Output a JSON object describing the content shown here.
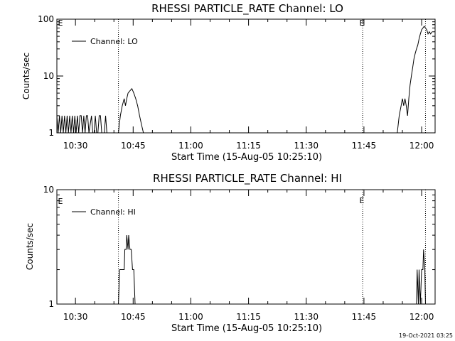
{
  "footer": {
    "timestamp": "19-Oct-2021 03:25"
  },
  "chart_data": [
    {
      "type": "line",
      "title": "RHESSI PARTICLE_RATE Channel: LO",
      "xlabel": "Start Time (15-Aug-05 10:25:10)",
      "ylabel": "Counts/sec",
      "yscale": "log",
      "xlim": [
        "10:25:10",
        "12:03:30"
      ],
      "ylim": [
        1,
        100
      ],
      "x_ticks": [
        "10:30",
        "10:45",
        "11:00",
        "11:15",
        "11:30",
        "11:45",
        "12:00"
      ],
      "y_ticks": [
        "1",
        "10",
        "100"
      ],
      "legend": {
        "position": "top-left",
        "entries": [
          "Channel: LO"
        ]
      },
      "markers": [
        {
          "time": "10:41:10",
          "label": "E"
        },
        {
          "time": "11:44:40",
          "label": "E"
        },
        {
          "time": "12:01:00",
          "label": ""
        }
      ],
      "marker_labels": [
        {
          "text": "E",
          "at": "left-edge"
        },
        {
          "text": "E",
          "at": "11:44:40"
        }
      ],
      "series": [
        {
          "points": [
            [
              "10:25:10",
              2
            ],
            [
              "10:25:30",
              1
            ],
            [
              "10:25:50",
              2
            ],
            [
              "10:26:10",
              1
            ],
            [
              "10:26:30",
              2
            ],
            [
              "10:26:50",
              1
            ],
            [
              "10:27:10",
              2
            ],
            [
              "10:27:30",
              1
            ],
            [
              "10:27:50",
              2
            ],
            [
              "10:28:10",
              1
            ],
            [
              "10:28:30",
              2
            ],
            [
              "10:28:50",
              1
            ],
            [
              "10:29:10",
              2
            ],
            [
              "10:29:30",
              1
            ],
            [
              "10:29:50",
              2
            ],
            [
              "10:30:10",
              1
            ],
            [
              "10:30:30",
              2
            ],
            [
              "10:30:50",
              1
            ],
            [
              "10:31:10",
              2
            ],
            [
              "10:31:30",
              2
            ],
            [
              "10:31:50",
              1
            ],
            [
              "10:32:10",
              2
            ],
            [
              "10:32:30",
              1
            ],
            [
              "10:32:50",
              2
            ],
            [
              "10:33:10",
              2
            ],
            [
              "10:33:30",
              1
            ],
            [
              "10:34:10",
              2
            ],
            [
              "10:34:30",
              1
            ],
            [
              "10:34:50",
              1
            ],
            [
              "10:35:10",
              2
            ],
            [
              "10:35:30",
              1
            ],
            [
              "10:35:50",
              1
            ],
            [
              "10:36:10",
              2
            ],
            [
              "10:36:30",
              2
            ],
            [
              "10:36:50",
              1
            ],
            [
              "10:37:30",
              1
            ],
            [
              "10:37:50",
              2
            ],
            [
              "10:38:10",
              1
            ],
            [
              "10:41:10",
              1
            ],
            [
              "10:41:40",
              2
            ],
            [
              "10:42:10",
              3
            ],
            [
              "10:42:40",
              4
            ],
            [
              "10:43:00",
              3
            ],
            [
              "10:43:20",
              4
            ],
            [
              "10:43:40",
              5
            ],
            [
              "10:44:10",
              5.5
            ],
            [
              "10:44:40",
              6
            ],
            [
              "10:45:10",
              5
            ],
            [
              "10:45:40",
              4
            ],
            [
              "10:46:10",
              3
            ],
            [
              "10:46:40",
              2
            ],
            [
              "10:47:10",
              1.4
            ],
            [
              "10:47:40",
              1
            ],
            [
              "11:53:40",
              1
            ],
            [
              "11:54:10",
              2
            ],
            [
              "11:54:40",
              3
            ],
            [
              "11:55:00",
              4
            ],
            [
              "11:55:20",
              3
            ],
            [
              "11:55:40",
              4
            ],
            [
              "11:56:00",
              3
            ],
            [
              "11:56:20",
              2
            ],
            [
              "11:56:40",
              4
            ],
            [
              "11:57:00",
              7
            ],
            [
              "11:57:20",
              10
            ],
            [
              "11:57:40",
              14
            ],
            [
              "11:58:00",
              20
            ],
            [
              "11:58:20",
              25
            ],
            [
              "11:58:40",
              30
            ],
            [
              "11:59:00",
              35
            ],
            [
              "11:59:20",
              45
            ],
            [
              "11:59:40",
              55
            ],
            [
              "12:00:00",
              65
            ],
            [
              "12:00:20",
              70
            ],
            [
              "12:00:40",
              75
            ],
            [
              "12:01:00",
              70
            ],
            [
              "12:01:20",
              65
            ],
            [
              "12:01:40",
              55
            ],
            [
              "12:02:00",
              60
            ],
            [
              "12:02:20",
              55
            ],
            [
              "12:02:40",
              60
            ]
          ]
        }
      ]
    },
    {
      "type": "line",
      "title": "RHESSI PARTICLE_RATE Channel: HI",
      "xlabel": "Start Time (15-Aug-05 10:25:10)",
      "ylabel": "Counts/sec",
      "yscale": "log",
      "xlim": [
        "10:25:10",
        "12:03:30"
      ],
      "ylim": [
        1,
        10
      ],
      "x_ticks": [
        "10:30",
        "10:45",
        "11:00",
        "11:15",
        "11:30",
        "11:45",
        "12:00"
      ],
      "y_ticks": [
        "1",
        "10"
      ],
      "legend": {
        "position": "top-left",
        "entries": [
          "Channel: HI"
        ]
      },
      "markers": [
        {
          "time": "10:41:10",
          "label": "E"
        },
        {
          "time": "11:44:40",
          "label": "E"
        },
        {
          "time": "12:01:00",
          "label": ""
        }
      ],
      "marker_labels": [
        {
          "text": "E",
          "at": "left-edge"
        },
        {
          "text": "E",
          "at": "11:44:40"
        }
      ],
      "series": [
        {
          "points": [
            [
              "10:41:10",
              1
            ],
            [
              "10:41:30",
              2
            ],
            [
              "10:42:00",
              2
            ],
            [
              "10:42:40",
              2
            ],
            [
              "10:42:50",
              3
            ],
            [
              "10:43:10",
              3
            ],
            [
              "10:43:20",
              4
            ],
            [
              "10:43:40",
              3
            ],
            [
              "10:43:50",
              4
            ],
            [
              "10:44:10",
              3
            ],
            [
              "10:44:30",
              3
            ],
            [
              "10:44:50",
              2
            ],
            [
              "10:45:10",
              2
            ],
            [
              "10:45:30",
              1
            ],
            [
              "11:58:40",
              1
            ],
            [
              "11:58:50",
              2
            ],
            [
              "11:59:10",
              1
            ],
            [
              "11:59:20",
              2
            ],
            [
              "11:59:40",
              1
            ],
            [
              "12:00:00",
              2
            ],
            [
              "12:00:20",
              2
            ],
            [
              "12:00:30",
              3
            ],
            [
              "12:00:50",
              2
            ],
            [
              "12:01:00",
              1
            ]
          ]
        }
      ]
    }
  ]
}
